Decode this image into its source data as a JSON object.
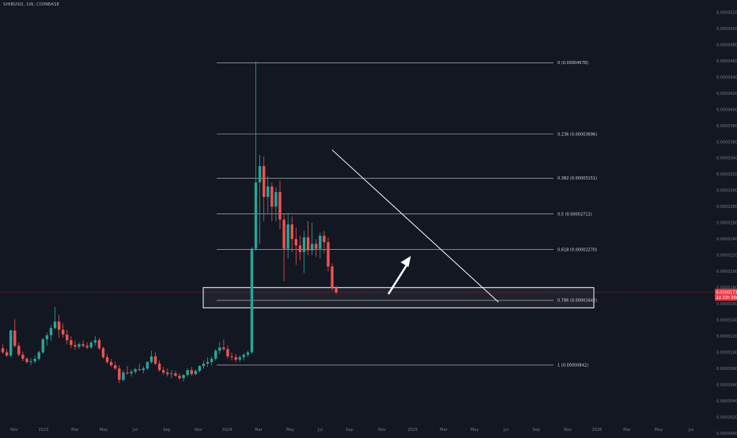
{
  "header": {
    "symbol_title": "SHIBUSD, 1W, COINBASE"
  },
  "colors": {
    "background": "#131722",
    "up": "#26a69a",
    "down": "#ef5350",
    "fib_line": "#c8cad0",
    "annotation": "#ffffff",
    "axis_text": "#787b86",
    "price_tag": "#f23645"
  },
  "current_price": {
    "value": 1.74e-05,
    "tag_line1": "0.00001737",
    "tag_line2": "2d 23h 56m"
  },
  "chart_data": {
    "type": "candlestick",
    "y_ticks": [
      {
        "label": "0.00005200",
        "value": 5.2e-05
      },
      {
        "label": "0.00005000",
        "value": 5e-05
      },
      {
        "label": "0.00004800",
        "value": 4.8e-05
      },
      {
        "label": "0.00004600",
        "value": 4.6e-05
      },
      {
        "label": "0.00004400",
        "value": 4.4e-05
      },
      {
        "label": "0.00004200",
        "value": 4.2e-05
      },
      {
        "label": "0.00004000",
        "value": 4e-05
      },
      {
        "label": "0.00003800",
        "value": 3.8e-05
      },
      {
        "label": "0.00003600",
        "value": 3.6e-05
      },
      {
        "label": "0.00003400",
        "value": 3.4e-05
      },
      {
        "label": "0.00003200",
        "value": 3.2e-05
      },
      {
        "label": "0.00003000",
        "value": 3e-05
      },
      {
        "label": "0.00002800",
        "value": 2.8e-05
      },
      {
        "label": "0.00002600",
        "value": 2.6e-05
      },
      {
        "label": "0.00002400",
        "value": 2.4e-05
      },
      {
        "label": "0.00002200",
        "value": 2.2e-05
      },
      {
        "label": "0.00002000",
        "value": 2e-05
      },
      {
        "label": "0.00001800",
        "value": 1.8e-05
      },
      {
        "label": "0.00001600",
        "value": 1.6e-05
      },
      {
        "label": "0.00001400",
        "value": 1.4e-05
      },
      {
        "label": "0.00001200",
        "value": 1.2e-05
      },
      {
        "label": "0.00001000",
        "value": 1e-05
      },
      {
        "label": "0.00000800",
        "value": 8e-06
      },
      {
        "label": "0.00000600",
        "value": 6e-06
      },
      {
        "label": "0.00000400",
        "value": 4e-06
      },
      {
        "label": "0.00000200",
        "value": 2e-06
      },
      {
        "label": "0.00000000",
        "value": 0.0
      }
    ],
    "x_ticks": [
      "Nov",
      "2023",
      "Mar",
      "May",
      "Jul",
      "Sep",
      "Nov",
      "2024",
      "Mar",
      "May",
      "Jul",
      "Sep",
      "Nov",
      "2025",
      "Mar",
      "May",
      "Jul",
      "Sep",
      "Nov",
      "2026",
      "Mar",
      "May",
      "Jul"
    ],
    "fib_levels": [
      {
        "ratio": 0,
        "price": 4.578e-05,
        "label": "0 (0.00004578)"
      },
      {
        "ratio": 0.236,
        "price": 3.696e-05,
        "label": "0.236 (0.00003696)"
      },
      {
        "ratio": 0.382,
        "price": 3.151e-05,
        "label": "0.382 (0.00003151)"
      },
      {
        "ratio": 0.5,
        "price": 2.711e-05,
        "label": "0.5 (0.00002711)"
      },
      {
        "ratio": 0.618,
        "price": 2.27e-05,
        "label": "0.618 (0.00002270)"
      },
      {
        "ratio": 0.786,
        "price": 1.642e-05,
        "label": "0.786 (0.00001642)"
      },
      {
        "ratio": 1,
        "price": 8.42e-06,
        "label": "1 (0.00000842)"
      }
    ],
    "support_zone": {
      "low": 1.55e-05,
      "high": 1.8e-05
    },
    "trendline": [
      {
        "week": 82,
        "price": 3.5e-05
      },
      {
        "week": 123,
        "price": 1.65e-05
      }
    ],
    "arrow": {
      "from": {
        "week": 96,
        "price": 1.72e-05
      },
      "to": {
        "week": 101,
        "price": 2.19e-05
      }
    },
    "candles": [
      [
        1.05e-05,
        1.1e-05,
        9.8e-06,
        1e-05
      ],
      [
        1e-05,
        1.04e-05,
        9.4e-06,
        9.6e-06
      ],
      [
        9.6e-06,
        1.28e-05,
        9.4e-06,
        1.27e-05
      ],
      [
        1.27e-05,
        1.41e-05,
        1.06e-05,
        1.08e-05
      ],
      [
        1.08e-05,
        1.12e-05,
        9.5e-06,
        9.7e-06
      ],
      [
        9.7e-06,
        1.01e-05,
        8.9e-06,
        9.2e-06
      ],
      [
        9.2e-06,
        9.4e-06,
        8.6e-06,
        8.8e-06
      ],
      [
        8.8e-06,
        9.3e-06,
        8.4e-06,
        8.9e-06
      ],
      [
        8.9e-06,
        9.6e-06,
        8.6e-06,
        9.2e-06
      ],
      [
        9.2e-06,
        1.02e-05,
        9e-06,
        1e-05
      ],
      [
        1e-05,
        1.18e-05,
        9.8e-06,
        1.16e-05
      ],
      [
        1.16e-05,
        1.24e-05,
        1.08e-05,
        1.21e-05
      ],
      [
        1.21e-05,
        1.34e-05,
        1.14e-05,
        1.3e-05
      ],
      [
        1.3e-05,
        1.56e-05,
        1.28e-05,
        1.38e-05
      ],
      [
        1.38e-05,
        1.46e-05,
        1.18e-05,
        1.28e-05
      ],
      [
        1.28e-05,
        1.36e-05,
        1.18e-05,
        1.22e-05
      ],
      [
        1.22e-05,
        1.28e-05,
        1.1e-05,
        1.15e-05
      ],
      [
        1.15e-05,
        1.2e-05,
        1.05e-05,
        1.09e-05
      ],
      [
        1.09e-05,
        1.14e-05,
        1.03e-05,
        1.07e-05
      ],
      [
        1.07e-05,
        1.12e-05,
        1.04e-05,
        1.1e-05
      ],
      [
        1.1e-05,
        1.15e-05,
        1.06e-05,
        1.08e-05
      ],
      [
        1.08e-05,
        1.12e-05,
        1.04e-05,
        1.06e-05
      ],
      [
        1.06e-05,
        1.14e-05,
        1.04e-05,
        1.12e-05
      ],
      [
        1.12e-05,
        1.2e-05,
        1.08e-05,
        1.15e-05
      ],
      [
        1.15e-05,
        1.18e-05,
        1.03e-05,
        1.05e-05
      ],
      [
        1.05e-05,
        1.07e-05,
        9.2e-06,
        9.4e-06
      ],
      [
        9.4e-06,
        9.8e-06,
        8.6e-06,
        8.8e-06
      ],
      [
        8.8e-06,
        9.2e-06,
        8.2e-06,
        8.4e-06
      ],
      [
        8.4e-06,
        8.8e-06,
        7.8e-06,
        8e-06
      ],
      [
        8e-06,
        8.4e-06,
        6.2e-06,
        6.6e-06
      ],
      [
        6.6e-06,
        7.8e-06,
        6.4e-06,
        7.5e-06
      ],
      [
        7.5e-06,
        8.3e-06,
        7.2e-06,
        7.4e-06
      ],
      [
        7.4e-06,
        7.9e-06,
        7e-06,
        7.6e-06
      ],
      [
        7.6e-06,
        8.1e-06,
        7.3e-06,
        7.9e-06
      ],
      [
        7.9e-06,
        8.6e-06,
        7.7e-06,
        7.8e-06
      ],
      [
        7.8e-06,
        8.3e-06,
        7.4e-06,
        8e-06
      ],
      [
        8e-06,
        8.9e-06,
        7.8e-06,
        8.8e-06
      ],
      [
        8.8e-06,
        1.02e-05,
        8.6e-06,
        9.5e-06
      ],
      [
        9.5e-06,
        1e-05,
        8.4e-06,
        8.6e-06
      ],
      [
        8.6e-06,
        9e-06,
        7.6e-06,
        7.8e-06
      ],
      [
        7.8e-06,
        8.2e-06,
        7.2e-06,
        7.5e-06
      ],
      [
        7.5e-06,
        8e-06,
        7e-06,
        7.3e-06
      ],
      [
        7.3e-06,
        7.8e-06,
        6.8e-06,
        7.4e-06
      ],
      [
        7.4e-06,
        7.7e-06,
        7e-06,
        7.1e-06
      ],
      [
        7.1e-06,
        7.4e-06,
        6.6e-06,
        6.8e-06
      ],
      [
        6.8e-06,
        7.3e-06,
        6.4e-06,
        7.2e-06
      ],
      [
        7.2e-06,
        8e-06,
        7e-06,
        7.8e-06
      ],
      [
        7.8e-06,
        8.2e-06,
        7.1e-06,
        7.3e-06
      ],
      [
        7.3e-06,
        7.9e-06,
        7.2e-06,
        7.7e-06
      ],
      [
        7.7e-06,
        8.4e-06,
        7.5e-06,
        8.3e-06
      ],
      [
        8.3e-06,
        9e-06,
        8e-06,
        8.6e-06
      ],
      [
        8.6e-06,
        9.4e-06,
        8.2e-06,
        8.8e-06
      ],
      [
        8.8e-06,
        9.5e-06,
        8.4e-06,
        9.2e-06
      ],
      [
        9.2e-06,
        1.04e-05,
        9e-06,
        1.02e-05
      ],
      [
        1.02e-05,
        1.13e-05,
        9.8e-06,
        1.06e-05
      ],
      [
        1.06e-05,
        1.16e-05,
        1.02e-05,
        1.04e-05
      ],
      [
        1.04e-05,
        1.08e-05,
        9.2e-06,
        9.5e-06
      ],
      [
        9.5e-06,
        1e-05,
        9e-06,
        9.4e-06
      ],
      [
        9.4e-06,
        9.8e-06,
        8.8e-06,
        9.1e-06
      ],
      [
        9.1e-06,
        9.6e-06,
        8.8e-06,
        9.4e-06
      ],
      [
        9.4e-06,
        9.9e-06,
        9e-06,
        9.7e-06
      ],
      [
        9.7e-06,
        1.02e-05,
        9.4e-06,
        1e-05
      ],
      [
        1e-05,
        2.3e-05,
        9.8e-06,
        2.28e-05
      ],
      [
        2.28e-05,
        4.59e-05,
        2.25e-05,
        3.1e-05
      ],
      [
        3.1e-05,
        3.44e-05,
        2.34e-05,
        3.3e-05
      ],
      [
        3.3e-05,
        3.42e-05,
        2.62e-05,
        2.92e-05
      ],
      [
        2.92e-05,
        3.18e-05,
        2.72e-05,
        3.05e-05
      ],
      [
        3.05e-05,
        3.1e-05,
        2.62e-05,
        2.8e-05
      ],
      [
        2.8e-05,
        3.04e-05,
        2.62e-05,
        2.98e-05
      ],
      [
        2.98e-05,
        3.12e-05,
        2.52e-05,
        2.64e-05
      ],
      [
        2.64e-05,
        2.72e-05,
        1.88e-05,
        2.28e-05
      ],
      [
        2.28e-05,
        2.72e-05,
        2.16e-05,
        2.58e-05
      ],
      [
        2.58e-05,
        2.68e-05,
        2.24e-05,
        2.4e-05
      ],
      [
        2.4e-05,
        2.54e-05,
        2.08e-05,
        2.32e-05
      ],
      [
        2.32e-05,
        2.44e-05,
        2.14e-05,
        2.24e-05
      ],
      [
        2.24e-05,
        2.5e-05,
        1.98e-05,
        2.42e-05
      ],
      [
        2.42e-05,
        2.62e-05,
        2.2e-05,
        2.26e-05
      ],
      [
        2.26e-05,
        2.6e-05,
        2.2e-05,
        2.34e-05
      ],
      [
        2.34e-05,
        2.4e-05,
        2.18e-05,
        2.28e-05
      ],
      [
        2.28e-05,
        2.48e-05,
        2.16e-05,
        2.44e-05
      ],
      [
        2.44e-05,
        2.5e-05,
        2.22e-05,
        2.36e-05
      ],
      [
        2.36e-05,
        2.42e-05,
        2e-05,
        2.06e-05
      ],
      [
        2.06e-05,
        2.1e-05,
        1.76e-05,
        1.8e-05
      ],
      [
        1.8e-05,
        1.82e-05,
        1.72e-05,
        1.74e-05
      ]
    ]
  }
}
